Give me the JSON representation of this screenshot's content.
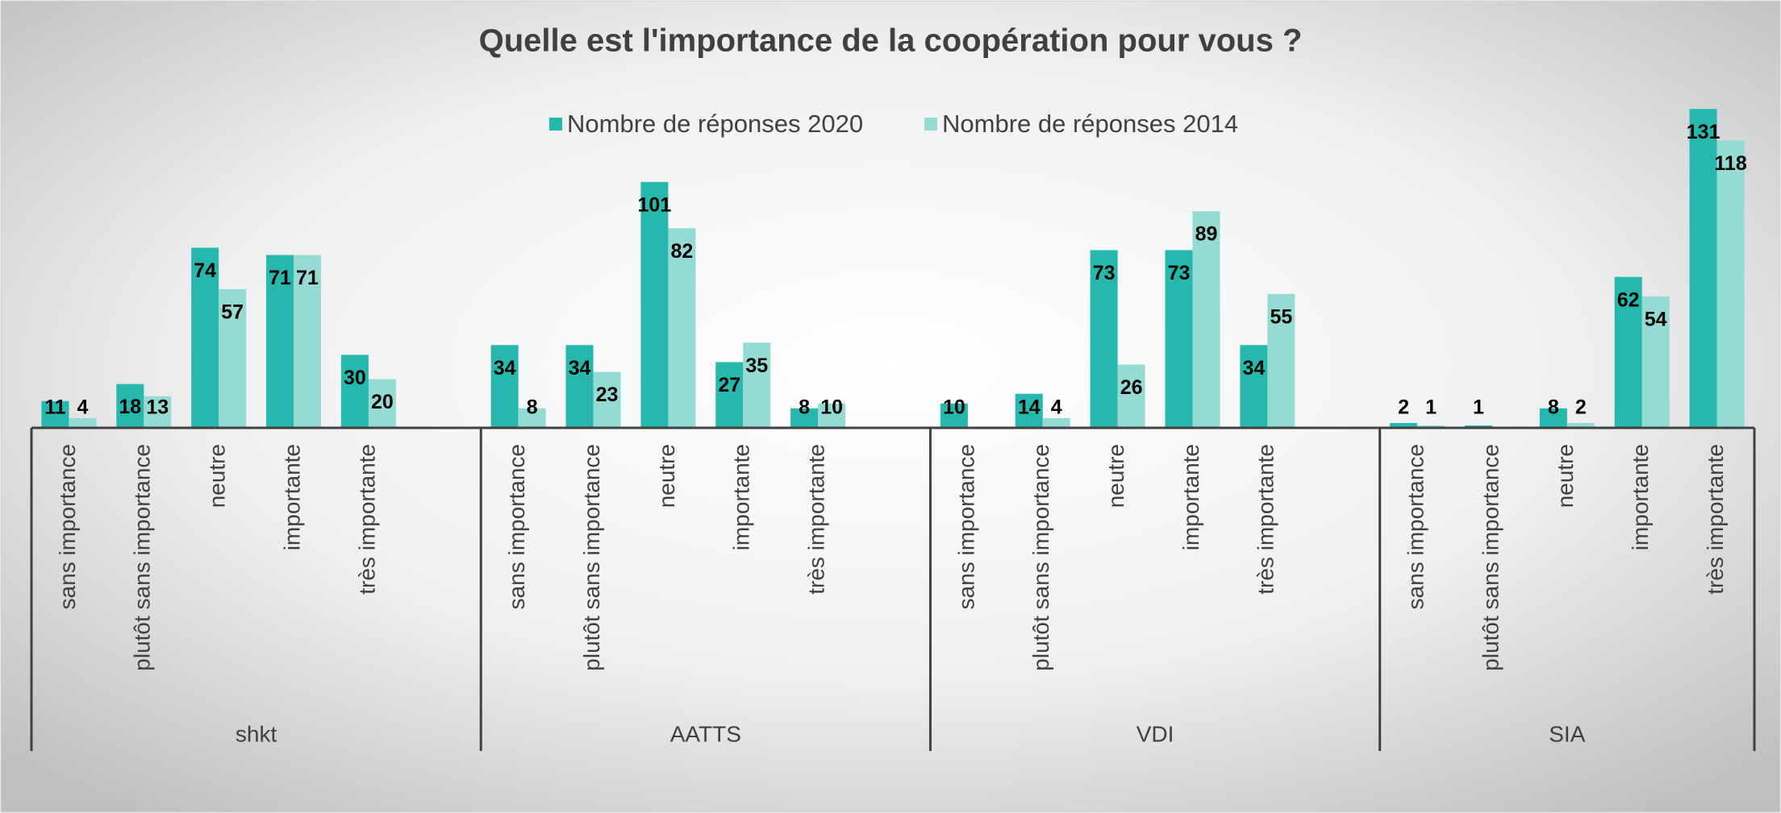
{
  "chart_data": {
    "type": "bar",
    "title": "Quelle est l'importance de la coopération pour vous ?",
    "groups": [
      {
        "name": "shkt",
        "categories": [
          "sans importance",
          "plutôt sans importance",
          "neutre",
          "importante",
          "très importante",
          null
        ]
      },
      {
        "name": "AATTS",
        "categories": [
          "sans importance",
          "plutôt sans importance",
          "neutre",
          "importante",
          "très importante",
          null
        ]
      },
      {
        "name": "VDI",
        "categories": [
          "sans importance",
          "plutôt sans importance",
          "neutre",
          "importante",
          "très importante",
          null
        ]
      },
      {
        "name": "SIA",
        "categories": [
          "sans importance",
          "plutôt sans importance",
          "neutre",
          "importante",
          "très importante"
        ]
      }
    ],
    "series": [
      {
        "name": "Nombre de réponses 2020",
        "color": "#26b8ad",
        "values": [
          [
            11,
            18,
            74,
            71,
            30,
            null
          ],
          [
            34,
            34,
            101,
            27,
            8,
            null
          ],
          [
            10,
            14,
            73,
            73,
            34,
            null
          ],
          [
            2,
            1,
            8,
            62,
            131
          ]
        ]
      },
      {
        "name": "Nombre de réponses 2014",
        "color": "#95dbd3",
        "values": [
          [
            4,
            13,
            57,
            71,
            20,
            null
          ],
          [
            8,
            23,
            82,
            35,
            10,
            null
          ],
          [
            null,
            4,
            26,
            89,
            55,
            null
          ],
          [
            1,
            null,
            2,
            54,
            118
          ]
        ]
      }
    ],
    "ylim": [
      0,
      140
    ],
    "legend": "top"
  }
}
